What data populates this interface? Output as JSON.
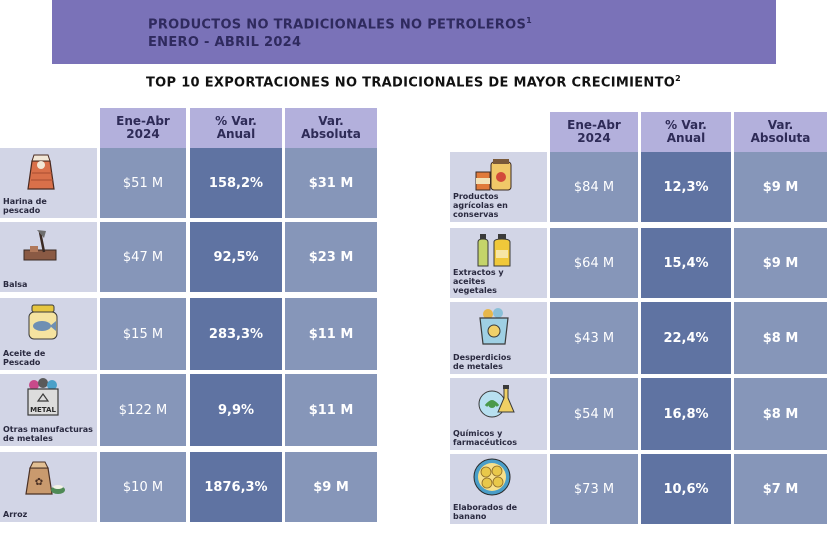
{
  "banner": {
    "title": "PRODUCTOS NO TRADICIONALES NO PETROLEROS",
    "title_sup": "1",
    "period": "ENERO - ABRIL 2024"
  },
  "subtitle": {
    "text": "TOP 10  EXPORTACIONES NO TRADICIONALES DE MAYOR CRECIMIENTO",
    "sup": "2"
  },
  "headers": {
    "col1": "Ene-Abr\n2024",
    "col2": "% Var.\nAnual",
    "col3": "Var.\nAbsoluta"
  },
  "left_rows": [
    {
      "label": "Harina de\npescado",
      "icon": "fishmeal-sack-icon",
      "value": "$51 M",
      "var_pct": "158,2%",
      "var_abs": "$31 M"
    },
    {
      "label": "Balsa",
      "icon": "wood-axe-icon",
      "value": "$47 M",
      "var_pct": "92,5%",
      "var_abs": "$23 M"
    },
    {
      "label": "Aceite de\nPescado",
      "icon": "fish-oil-jar-icon",
      "value": "$15 M",
      "var_pct": "283,3%",
      "var_abs": "$11 M"
    },
    {
      "label": "Otras manufacturas\nde metales",
      "icon": "metal-recycling-bin-icon",
      "value": "$122 M",
      "var_pct": "9,9%",
      "var_abs": "$11 M"
    },
    {
      "label": "Arroz",
      "icon": "rice-sack-icon",
      "value": "$10 M",
      "var_pct": "1876,3%",
      "var_abs": "$9 M"
    }
  ],
  "right_rows": [
    {
      "label": "Productos\nagrícolas en\nconservas",
      "icon": "canned-goods-icon",
      "value": "$84 M",
      "var_pct": "12,3%",
      "var_abs": "$9 M"
    },
    {
      "label": "Extractos y\naceites\nvegetales",
      "icon": "oil-bottles-icon",
      "value": "$64 M",
      "var_pct": "15,4%",
      "var_abs": "$9 M"
    },
    {
      "label": "Desperdicios\nde metales",
      "icon": "metal-scrap-bin-icon",
      "value": "$43 M",
      "var_pct": "22,4%",
      "var_abs": "$8 M"
    },
    {
      "label": "Químicos y\nfarmacéuticos",
      "icon": "chemicals-flask-icon",
      "value": "$54 M",
      "var_pct": "16,8%",
      "var_abs": "$8 M"
    },
    {
      "label": "Elaborados de\nbanano",
      "icon": "banana-chips-icon",
      "value": "$73 M",
      "var_pct": "10,6%",
      "var_abs": "$7 M"
    }
  ]
}
